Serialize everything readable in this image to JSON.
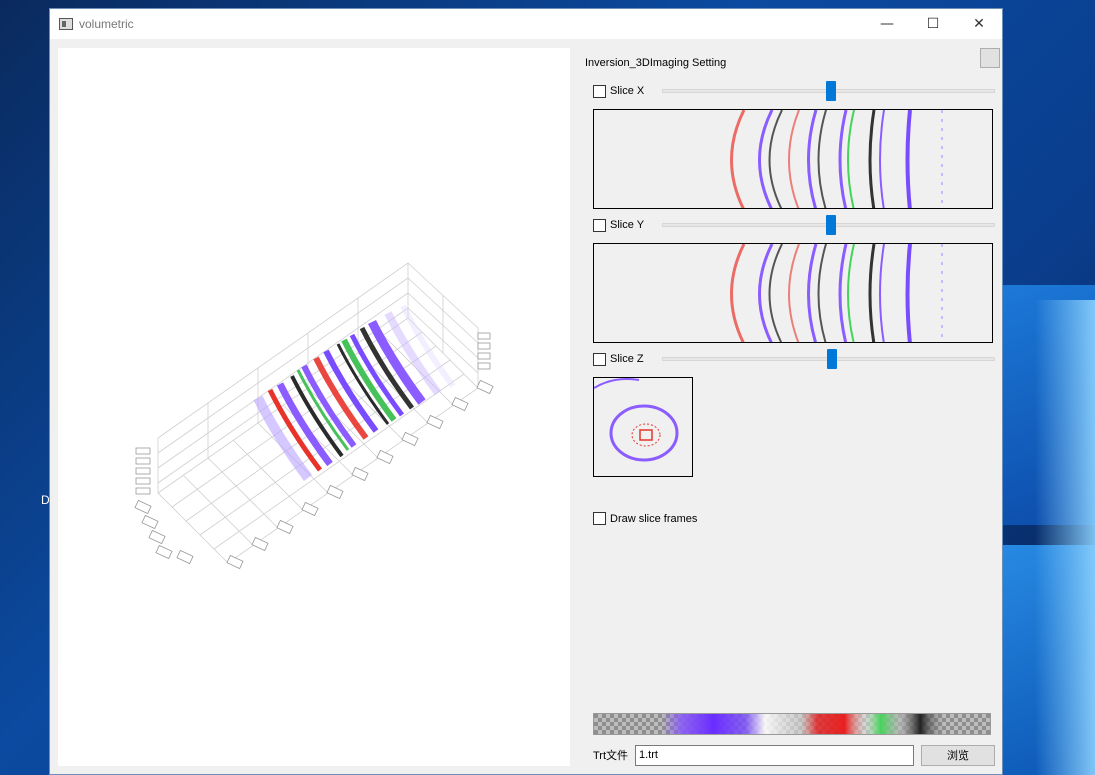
{
  "window": {
    "title": "volumetric",
    "icon": "app-window-icon"
  },
  "controls": {
    "minimize": "—",
    "maximize": "☐",
    "close": "✕"
  },
  "settings": {
    "title": "Inversion_3DImaging Setting",
    "slices": [
      {
        "label": "Slice X",
        "checked": false,
        "value_fraction": 0.5
      },
      {
        "label": "Slice Y",
        "checked": false,
        "value_fraction": 0.5
      },
      {
        "label": "Slice Z",
        "checked": false,
        "value_fraction": 0.5
      }
    ],
    "draw_frames": {
      "label": "Draw slice frames",
      "checked": false
    },
    "colormap": [
      "#8a5cf6",
      "#6a2cff",
      "#ffffff",
      "#d8d8d8",
      "#e82020",
      "#46d35a",
      "#222222"
    ],
    "file": {
      "label": "Trt文件",
      "value": "1.trt",
      "browse": "浏览"
    }
  },
  "desktop": {
    "letter": "D"
  }
}
